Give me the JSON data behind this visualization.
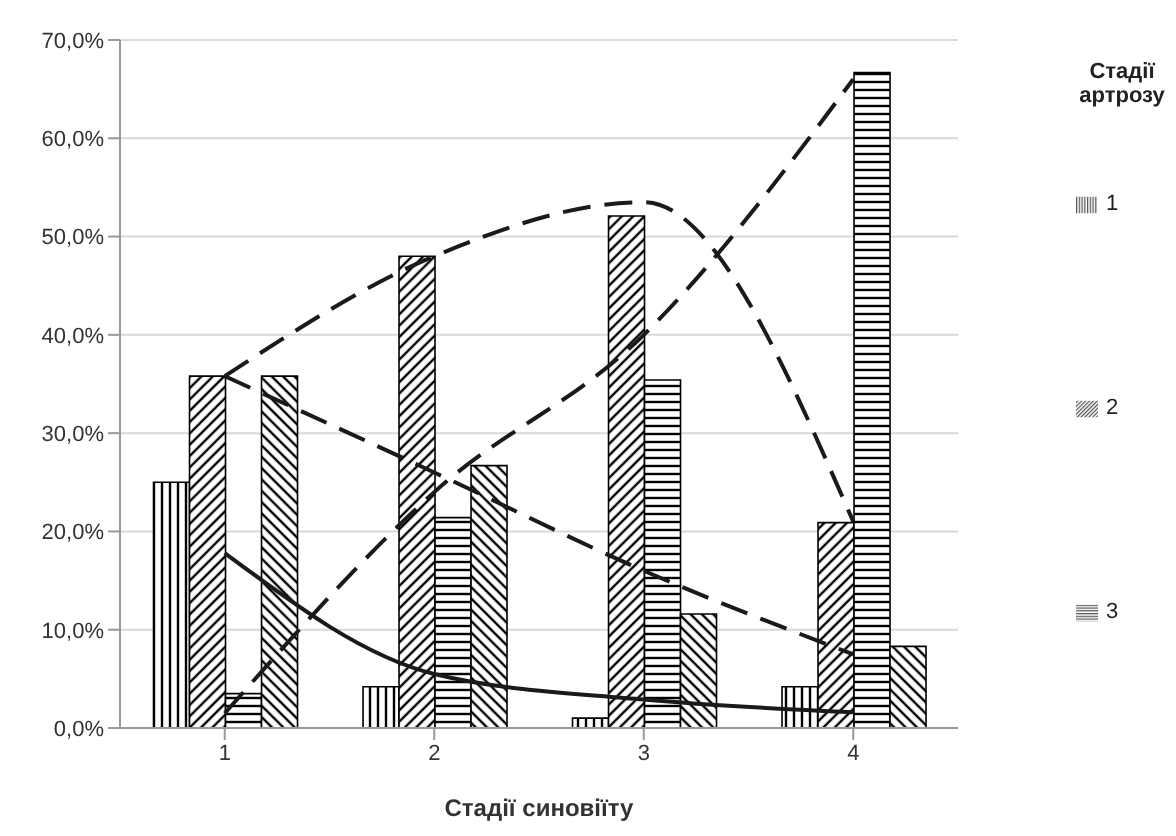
{
  "chart_data": {
    "type": "bar",
    "xlabel": "Стадії синовіїту",
    "legend_title": "Стадії артрозу",
    "categories": [
      "1",
      "2",
      "3",
      "4"
    ],
    "series": [
      {
        "name": "1",
        "color": "#000000",
        "values": [
          25.0,
          4.2,
          1.0,
          4.2
        ]
      },
      {
        "name": "2",
        "color": "#000000",
        "values": [
          35.8,
          48.0,
          52.1,
          20.9
        ]
      },
      {
        "name": "3",
        "color": "#000000",
        "values": [
          3.5,
          21.4,
          35.4,
          66.7
        ]
      },
      {
        "color": "#000000",
        "values": [
          35.8,
          26.7,
          11.6,
          8.3
        ]
      },
      {
        "type": "line",
        "color": "#1a1a1a",
        "line_style": "solid",
        "values": [
          17.8,
          5.5,
          2.9,
          1.6
        ]
      },
      {
        "type": "line",
        "color": "#1a1a1a",
        "line_style": "dashed",
        "values": [
          35.8,
          48.0,
          53.5,
          21.0
        ]
      },
      {
        "type": "line",
        "color": "#1a1a1a",
        "line_style": "dashed",
        "values": [
          1.5,
          24.0,
          40.0,
          66.0
        ]
      },
      {
        "type": "line",
        "color": "#1a1a1a",
        "line_style": "dashed",
        "values": [
          35.8,
          26.0,
          16.0,
          7.5
        ]
      }
    ],
    "ylim": [
      0,
      70
    ],
    "yticks": [
      {
        "value": 0,
        "label": "0,0%"
      },
      {
        "value": 10,
        "label": "10,0%"
      },
      {
        "value": 20,
        "label": "20,0%"
      },
      {
        "value": 30,
        "label": "30,0%"
      },
      {
        "value": 40,
        "label": "40,0%"
      },
      {
        "value": 50,
        "label": "50,0%"
      },
      {
        "value": 60,
        "label": "60,0%"
      },
      {
        "value": 70,
        "label": "70,0%"
      }
    ],
    "grid": "y",
    "legend": "right"
  }
}
